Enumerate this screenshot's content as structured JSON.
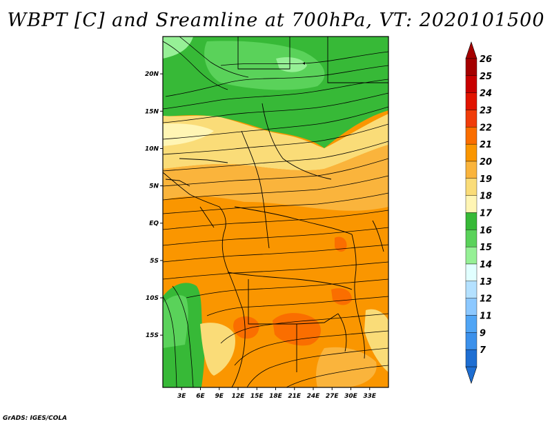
{
  "title": "WBPT [C] and Sreamline at 700hPa, VT: 2020101500",
  "footer": "GrADS: IGES/COLA",
  "map": {
    "lon_range": [
      0,
      36
    ],
    "lat_range": [
      -22,
      25
    ],
    "lat_ticks": [
      {
        "value": 20,
        "label": "20N"
      },
      {
        "value": 15,
        "label": "15N"
      },
      {
        "value": 10,
        "label": "10N"
      },
      {
        "value": 5,
        "label": "5N"
      },
      {
        "value": 0,
        "label": "EQ"
      },
      {
        "value": -5,
        "label": "5S"
      },
      {
        "value": -10,
        "label": "10S"
      },
      {
        "value": -15,
        "label": "15S"
      }
    ],
    "lon_ticks": [
      {
        "value": 3,
        "label": "3E"
      },
      {
        "value": 6,
        "label": "6E"
      },
      {
        "value": 9,
        "label": "9E"
      },
      {
        "value": 12,
        "label": "12E"
      },
      {
        "value": 15,
        "label": "15E"
      },
      {
        "value": 18,
        "label": "18E"
      },
      {
        "value": 21,
        "label": "21E"
      },
      {
        "value": 24,
        "label": "24E"
      },
      {
        "value": 27,
        "label": "27E"
      },
      {
        "value": 30,
        "label": "30E"
      },
      {
        "value": 33,
        "label": "33E"
      }
    ]
  },
  "colorbar": {
    "levels": [
      {
        "label": "26",
        "color": "#a50000"
      },
      {
        "label": "25",
        "color": "#c80000"
      },
      {
        "label": "24",
        "color": "#e11400"
      },
      {
        "label": "23",
        "color": "#f03c0a"
      },
      {
        "label": "22",
        "color": "#fa6e00"
      },
      {
        "label": "21",
        "color": "#fa9600"
      },
      {
        "label": "20",
        "color": "#fab43c"
      },
      {
        "label": "19",
        "color": "#fadc78"
      },
      {
        "label": "18",
        "color": "#fff5b4"
      },
      {
        "label": "17",
        "color": "#37b937"
      },
      {
        "label": "16",
        "color": "#5ad25a"
      },
      {
        "label": "15",
        "color": "#96f096"
      },
      {
        "label": "14",
        "color": "#e1ffff"
      },
      {
        "label": "13",
        "color": "#b4e1ff"
      },
      {
        "label": "12",
        "color": "#8cc8ff"
      },
      {
        "label": "11",
        "color": "#50a5f5"
      },
      {
        "label": "9",
        "color": "#3c91eb"
      },
      {
        "label": "7",
        "color": "#1e6ed2"
      }
    ],
    "bottom_color": "#1e6ed2",
    "top_color": "#a50000"
  }
}
